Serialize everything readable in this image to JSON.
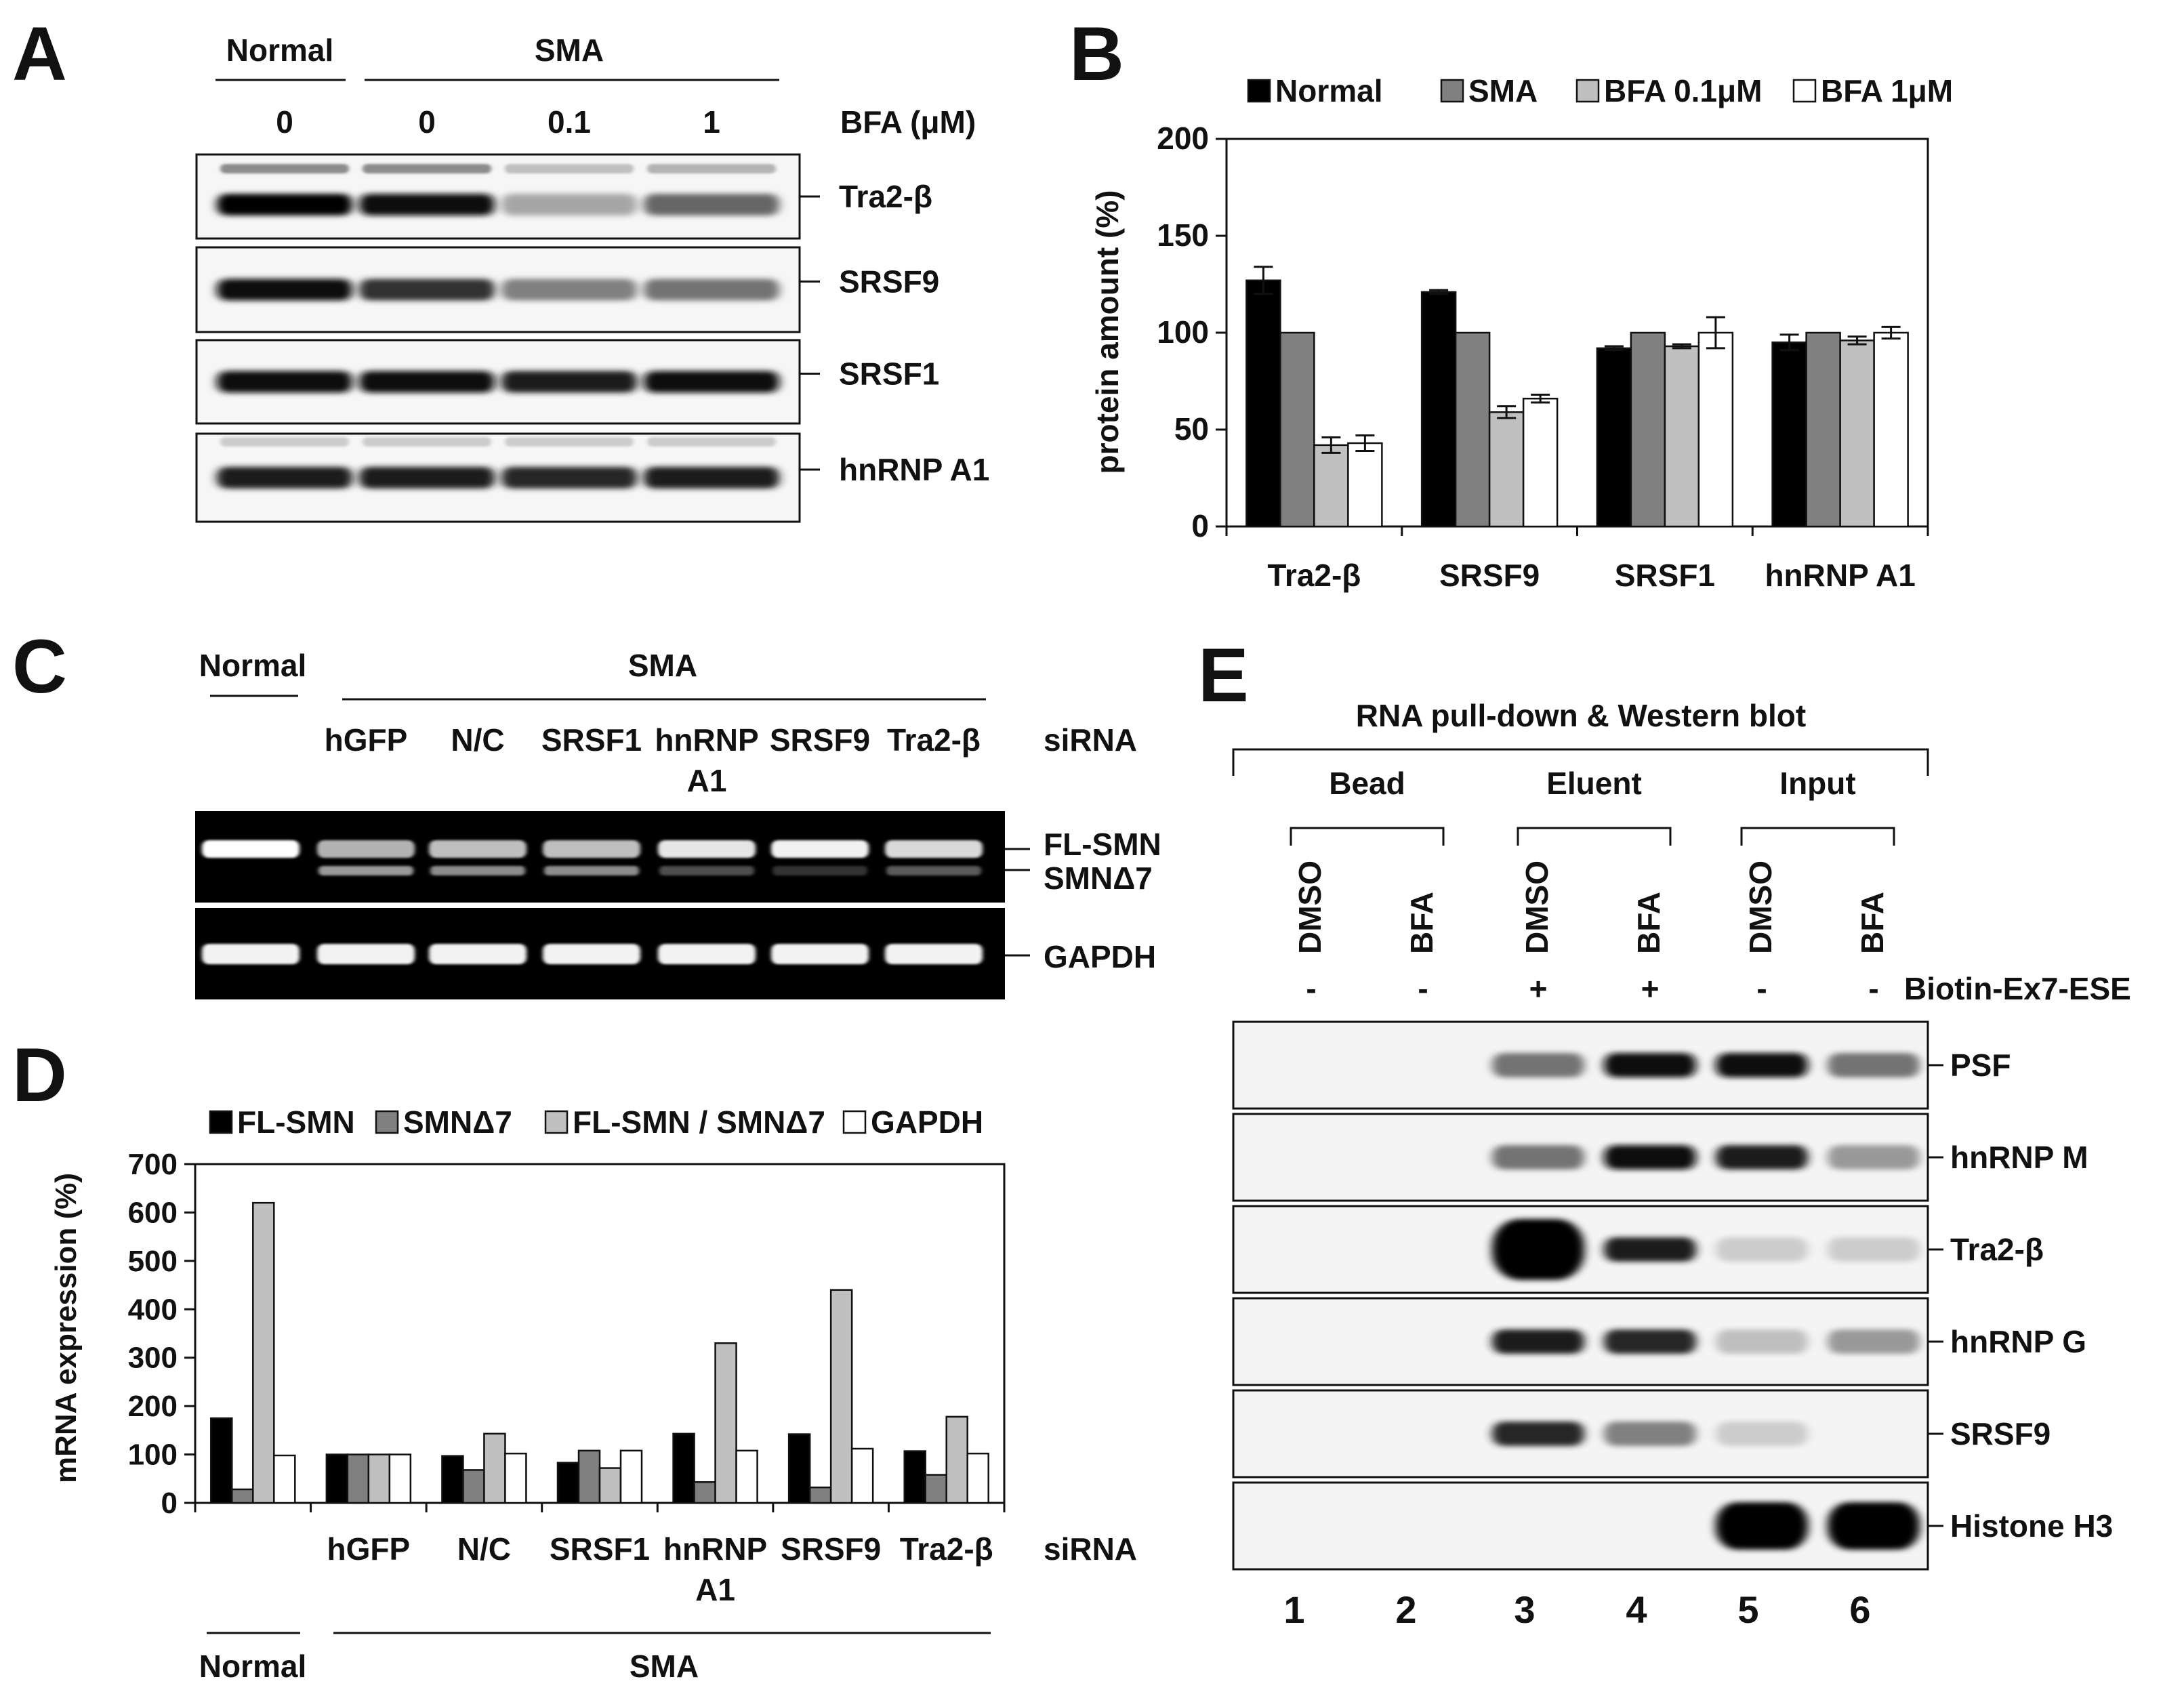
{
  "panelA": {
    "label": "A",
    "group_normal": "Normal",
    "group_sma": "SMA",
    "bfa_label": "BFA (μM)",
    "doses": [
      "0",
      "0",
      "0.1",
      "1"
    ],
    "blots": [
      {
        "name": "Tra2-β",
        "lanes": [
          1.0,
          0.95,
          0.35,
          0.6
        ],
        "upper": [
          0.45,
          0.45,
          0.25,
          0.3
        ]
      },
      {
        "name": "SRSF9",
        "lanes": [
          0.95,
          0.8,
          0.5,
          0.55
        ],
        "upper": [
          0,
          0,
          0,
          0
        ]
      },
      {
        "name": "SRSF1",
        "lanes": [
          0.95,
          0.95,
          0.9,
          0.95
        ],
        "upper": [
          0,
          0,
          0,
          0
        ]
      },
      {
        "name": "hnRNP A1",
        "lanes": [
          0.9,
          0.9,
          0.85,
          0.9
        ],
        "upper": [
          0.2,
          0.2,
          0.2,
          0.2
        ]
      }
    ]
  },
  "panelB": {
    "label": "B",
    "chart_data": {
      "type": "bar",
      "ylabel": "protein amount (%)",
      "ylim": [
        0,
        200
      ],
      "yticks": [
        "0",
        "50",
        "100",
        "150",
        "200"
      ],
      "categories": [
        "Tra2-β",
        "SRSF9",
        "SRSF1",
        "hnRNP A1"
      ],
      "legend_position": "top",
      "series": [
        {
          "name": "Normal",
          "color": "#000000",
          "values": [
            127,
            121,
            92,
            95
          ],
          "errors": [
            7,
            1,
            1,
            4
          ]
        },
        {
          "name": "SMA",
          "color": "#808080",
          "values": [
            100,
            100,
            100,
            100
          ],
          "errors": [
            0,
            0,
            0,
            0
          ]
        },
        {
          "name": "BFA 0.1μM",
          "color": "#c0c0c0",
          "values": [
            42,
            59,
            93,
            96
          ],
          "errors": [
            4,
            3,
            1,
            2
          ]
        },
        {
          "name": "BFA 1μM",
          "color": "#ffffff",
          "values": [
            43,
            66,
            100,
            100
          ],
          "errors": [
            4,
            2,
            8,
            3
          ]
        }
      ]
    }
  },
  "panelC": {
    "label": "C",
    "group_normal": "Normal",
    "group_sma": "SMA",
    "sirna_label": "siRNA",
    "lanes": [
      "hGFP",
      "N/C",
      "SRSF1",
      "hnRNP\nA1",
      "SRSF9",
      "Tra2-β"
    ],
    "lane_lines": [
      [
        "hGFP"
      ],
      [
        "N/C"
      ],
      [
        "SRSF1"
      ],
      [
        "hnRNP",
        "A1"
      ],
      [
        "SRSF9"
      ],
      [
        "Tra2-β"
      ]
    ],
    "band_labels": [
      "FL-SMN",
      "SMNΔ7",
      "GAPDH"
    ],
    "fl_intensity": [
      1.0,
      0.7,
      0.75,
      0.75,
      0.9,
      0.95,
      0.85
    ],
    "d7_intensity": [
      0.0,
      0.6,
      0.55,
      0.55,
      0.3,
      0.2,
      0.35
    ]
  },
  "panelD": {
    "label": "D",
    "chart_data": {
      "type": "bar",
      "ylabel": "mRNA expression (%)",
      "ylim": [
        0,
        700
      ],
      "yticks": [
        "0",
        "100",
        "200",
        "300",
        "400",
        "500",
        "600",
        "700"
      ],
      "categories": [
        "Normal",
        "hGFP",
        "N/C",
        "SRSF1",
        "hnRNP A1",
        "SRSF9",
        "Tra2-β"
      ],
      "category_lines": [
        [
          ""
        ],
        [
          "hGFP"
        ],
        [
          "N/C"
        ],
        [
          "SRSF1"
        ],
        [
          "hnRNP",
          "A1"
        ],
        [
          "SRSF9"
        ],
        [
          "Tra2-β"
        ]
      ],
      "sirna_label": "siRNA",
      "group_normal": "Normal",
      "group_sma": "SMA",
      "legend_position": "top",
      "series": [
        {
          "name": "FL-SMN",
          "color": "#000000",
          "values": [
            175,
            100,
            97,
            83,
            143,
            142,
            107
          ]
        },
        {
          "name": "SMNΔ7",
          "color": "#808080",
          "values": [
            28,
            100,
            68,
            108,
            43,
            32,
            58
          ]
        },
        {
          "name": "FL-SMN / SMNΔ7",
          "color": "#c0c0c0",
          "values": [
            620,
            100,
            143,
            72,
            330,
            440,
            178
          ]
        },
        {
          "name": "GAPDH",
          "color": "#ffffff",
          "values": [
            98,
            100,
            102,
            108,
            108,
            112,
            102
          ]
        }
      ]
    }
  },
  "panelE": {
    "label": "E",
    "title": "RNA pull-down & Western blot",
    "groups": [
      "Bead",
      "Eluent",
      "Input"
    ],
    "treatments": [
      "DMSO",
      "BFA",
      "DMSO",
      "BFA",
      "DMSO",
      "BFA"
    ],
    "biotin_label": "Biotin-Ex7-ESE",
    "biotin": [
      "-",
      "-",
      "+",
      "+",
      "-",
      "-"
    ],
    "lane_numbers": [
      "1",
      "2",
      "3",
      "4",
      "5",
      "6"
    ],
    "blots": [
      {
        "name": "PSF",
        "lanes": [
          0,
          0,
          0.55,
          0.95,
          0.95,
          0.55
        ]
      },
      {
        "name": "hnRNP M",
        "lanes": [
          0,
          0,
          0.55,
          0.95,
          0.9,
          0.4
        ]
      },
      {
        "name": "Tra2-β",
        "lanes": [
          0,
          0,
          1.0,
          0.9,
          0.2,
          0.2
        ]
      },
      {
        "name": "hnRNP G",
        "lanes": [
          0,
          0,
          0.9,
          0.85,
          0.25,
          0.4
        ]
      },
      {
        "name": "SRSF9",
        "lanes": [
          0,
          0,
          0.85,
          0.5,
          0.2,
          0
        ]
      },
      {
        "name": "Histone H3",
        "lanes": [
          0,
          0,
          0,
          0,
          1.0,
          1.0
        ]
      }
    ]
  }
}
